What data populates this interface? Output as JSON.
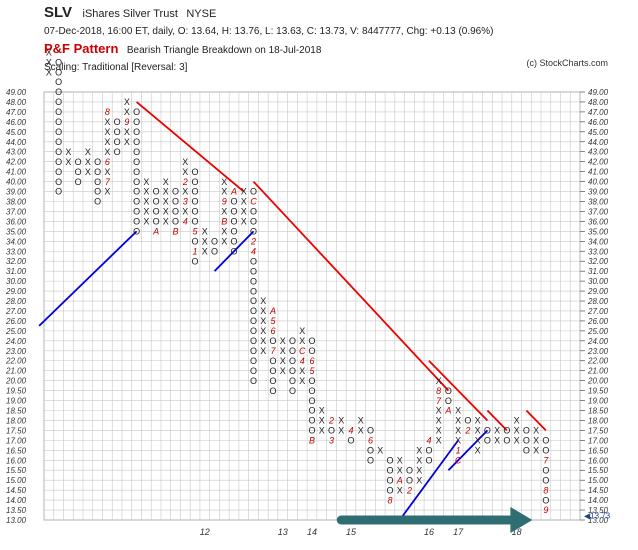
{
  "header": {
    "ticker": "SLV",
    "name": "iShares Silver Trust",
    "exchange": "NYSE",
    "quote": "07-Dec-2018, 16:00 ET, daily, O: 13.64, H: 13.76, L: 13.63, C: 13.73, V: 8447777, Chg: +0.13 (0.96%)",
    "pattern_label": "P&F Pattern",
    "pattern_text": "Bearish Triangle Breakdown on 18-Jul-2018",
    "scaling": "Scaling: Traditional [Reversal: 3]",
    "copyright": "(c) StockCharts.com"
  },
  "chart_data": {
    "type": "point-and-figure",
    "title": "SLV",
    "price_levels": [
      "49.00",
      "48.00",
      "47.00",
      "46.00",
      "45.00",
      "44.00",
      "43.00",
      "42.00",
      "41.00",
      "40.00",
      "39.00",
      "38.00",
      "37.00",
      "36.00",
      "35.00",
      "34.00",
      "33.00",
      "32.00",
      "31.00",
      "30.00",
      "29.00",
      "28.00",
      "27.00",
      "26.00",
      "25.00",
      "24.00",
      "23.00",
      "22.00",
      "21.00",
      "20.00",
      "19.50",
      "19.00",
      "18.50",
      "18.00",
      "17.50",
      "17.00",
      "16.50",
      "16.00",
      "15.50",
      "15.00",
      "14.50",
      "14.00",
      "13.50",
      "13.00"
    ],
    "year_labels": [
      {
        "col": 16,
        "label": "12"
      },
      {
        "col": 24,
        "label": "13"
      },
      {
        "col": 27,
        "label": "14"
      },
      {
        "col": 31,
        "label": "15"
      },
      {
        "col": 39,
        "label": "16"
      },
      {
        "col": 42,
        "label": "17"
      },
      {
        "col": 48,
        "label": "18"
      }
    ],
    "last_price": "13.73",
    "columns": [
      {
        "type": "X",
        "low": 45,
        "high": 47
      },
      {
        "type": "O",
        "low": 33,
        "high": 46,
        "labels": [
          {
            "row": 47,
            "t": "5"
          }
        ]
      },
      {
        "type": "X",
        "low": 36,
        "high": 37
      },
      {
        "type": "O",
        "low": 34,
        "high": 36
      },
      {
        "type": "X",
        "low": 35,
        "high": 37
      },
      {
        "type": "O",
        "low": 32,
        "high": 36
      },
      {
        "type": "X",
        "low": 33,
        "high": 41,
        "labels": [
          {
            "row": 36,
            "t": "6"
          },
          {
            "row": 34,
            "t": "7"
          },
          {
            "row": 41,
            "t": "8"
          }
        ]
      },
      {
        "type": "O",
        "low": 37,
        "high": 40
      },
      {
        "type": "X",
        "low": 38,
        "high": 42,
        "labels": [
          {
            "row": 40,
            "t": "9"
          }
        ]
      },
      {
        "type": "O",
        "low": 29,
        "high": 41
      },
      {
        "type": "X",
        "low": 30,
        "high": 34
      },
      {
        "type": "O",
        "low": 29,
        "high": 33,
        "labels": [
          {
            "row": 29,
            "t": "A"
          }
        ]
      },
      {
        "type": "X",
        "low": 30,
        "high": 34
      },
      {
        "type": "O",
        "low": 29,
        "high": 33,
        "labels": [
          {
            "row": 29,
            "t": "B"
          }
        ]
      },
      {
        "type": "X",
        "low": 30,
        "high": 36,
        "labels": [
          {
            "row": 34,
            "t": "2"
          },
          {
            "row": 32,
            "t": "3"
          },
          {
            "row": 30,
            "t": "4"
          }
        ]
      },
      {
        "type": "O",
        "low": 26,
        "high": 35,
        "labels": [
          {
            "row": 27,
            "t": "1"
          },
          {
            "row": 29,
            "t": "5"
          }
        ]
      },
      {
        "type": "X",
        "low": 27,
        "high": 29
      },
      {
        "type": "O",
        "low": 27,
        "high": 28
      },
      {
        "type": "X",
        "low": 28,
        "high": 34,
        "labels": [
          {
            "row": 32,
            "t": "9"
          },
          {
            "row": 30,
            "t": "B"
          }
        ]
      },
      {
        "type": "O",
        "low": 27,
        "high": 33,
        "labels": [
          {
            "row": 33,
            "t": "A"
          }
        ]
      },
      {
        "type": "X",
        "low": 30,
        "high": 33
      },
      {
        "type": "O",
        "low": 14,
        "high": 33,
        "labels": [
          {
            "row": 32,
            "t": "C"
          },
          {
            "row": 28,
            "t": "2"
          },
          {
            "row": 27,
            "t": "4"
          }
        ]
      },
      {
        "type": "X",
        "low": 17,
        "high": 22
      },
      {
        "type": "O",
        "low": 13,
        "high": 21,
        "labels": [
          {
            "row": 21,
            "t": "A"
          },
          {
            "row": 20,
            "t": "5"
          },
          {
            "row": 19,
            "t": "6"
          },
          {
            "row": 17,
            "t": "7"
          }
        ]
      },
      {
        "type": "X",
        "low": 15,
        "high": 18
      },
      {
        "type": "O",
        "low": 13,
        "high": 18
      },
      {
        "type": "X",
        "low": 14,
        "high": 19,
        "labels": [
          {
            "row": 17,
            "t": "C"
          },
          {
            "row": 16,
            "t": "4"
          }
        ]
      },
      {
        "type": "O",
        "low": 8,
        "high": 18,
        "labels": [
          {
            "row": 16,
            "t": "6"
          },
          {
            "row": 15,
            "t": "5"
          },
          {
            "row": 8,
            "t": "B"
          }
        ]
      },
      {
        "type": "X",
        "low": 9,
        "high": 11
      },
      {
        "type": "O",
        "low": 8,
        "high": 10,
        "labels": [
          {
            "row": 10,
            "t": "2"
          },
          {
            "row": 8,
            "t": "3"
          }
        ]
      },
      {
        "type": "X",
        "low": 9,
        "high": 10
      },
      {
        "type": "O",
        "low": 8,
        "high": 9,
        "labels": [
          {
            "row": 9,
            "t": "4"
          }
        ]
      },
      {
        "type": "X",
        "low": 9,
        "high": 10
      },
      {
        "type": "O",
        "low": 6,
        "high": 9,
        "labels": [
          {
            "row": 8,
            "t": "6"
          }
        ]
      },
      {
        "type": "X",
        "low": 7,
        "high": 7
      },
      {
        "type": "O",
        "low": 2,
        "high": 6,
        "labels": [
          {
            "row": 2,
            "t": "8"
          }
        ]
      },
      {
        "type": "X",
        "low": 3,
        "high": 6,
        "labels": [
          {
            "row": 4,
            "t": "A"
          }
        ]
      },
      {
        "type": "O",
        "low": 3,
        "high": 5,
        "labels": [
          {
            "row": 3,
            "t": "2"
          }
        ]
      },
      {
        "type": "X",
        "low": 4,
        "high": 7
      },
      {
        "type": "O",
        "low": 6,
        "high": 8,
        "labels": [
          {
            "row": 8,
            "t": "4"
          }
        ]
      },
      {
        "type": "X",
        "low": 8,
        "high": 14,
        "labels": [
          {
            "row": 13,
            "t": "8"
          },
          {
            "row": 12,
            "t": "7"
          }
        ]
      },
      {
        "type": "O",
        "low": 11,
        "high": 13,
        "labels": [
          {
            "row": 11,
            "t": "A"
          }
        ]
      },
      {
        "type": "X",
        "low": 6,
        "high": 11,
        "labels": [
          {
            "row": 6,
            "t": "C"
          },
          {
            "row": 7,
            "t": "1"
          }
        ]
      },
      {
        "type": "O",
        "low": 9,
        "high": 10,
        "labels": [
          {
            "row": 9,
            "t": "2"
          }
        ]
      },
      {
        "type": "X",
        "low": 7,
        "high": 10
      },
      {
        "type": "O",
        "low": 8,
        "high": 9
      },
      {
        "type": "X",
        "low": 8,
        "high": 9
      },
      {
        "type": "O",
        "low": 8,
        "high": 9
      },
      {
        "type": "X",
        "low": 8,
        "high": 10
      },
      {
        "type": "O",
        "low": 7,
        "high": 9
      },
      {
        "type": "X",
        "low": 7,
        "high": 9
      },
      {
        "type": "O",
        "low": 1,
        "high": 8,
        "labels": [
          {
            "row": 6,
            "t": "7"
          },
          {
            "row": 3,
            "t": "8"
          },
          {
            "row": 1,
            "t": "9"
          }
        ]
      }
    ],
    "trendlines": [
      {
        "color": "#0000dd",
        "from": {
          "col": -1,
          "row": 19.5
        },
        "to": {
          "col": 9,
          "row": 29
        }
      },
      {
        "color": "#0000dd",
        "from": {
          "col": 17,
          "row": 25
        },
        "to": {
          "col": 21,
          "row": 29
        }
      },
      {
        "color": "#0000dd",
        "from": {
          "col": 36,
          "row": 0
        },
        "to": {
          "col": 42,
          "row": 8
        }
      },
      {
        "color": "#0000dd",
        "from": {
          "col": 41,
          "row": 5
        },
        "to": {
          "col": 45,
          "row": 9
        }
      },
      {
        "color": "#ee0000",
        "from": {
          "col": 9,
          "row": 42
        },
        "to": {
          "col": 20,
          "row": 33
        }
      },
      {
        "color": "#ee0000",
        "from": {
          "col": 21,
          "row": 34
        },
        "to": {
          "col": 41,
          "row": 13
        }
      },
      {
        "color": "#ee0000",
        "from": {
          "col": 39,
          "row": 16
        },
        "to": {
          "col": 45,
          "row": 10
        }
      },
      {
        "color": "#ee0000",
        "from": {
          "col": 45,
          "row": 11
        },
        "to": {
          "col": 47,
          "row": 9
        }
      },
      {
        "color": "#ee0000",
        "from": {
          "col": 49,
          "row": 11
        },
        "to": {
          "col": 51,
          "row": 9
        }
      }
    ],
    "arrow": {
      "color": "#2e6e73",
      "from_col": 30,
      "to_col": 49,
      "row": 0
    }
  }
}
